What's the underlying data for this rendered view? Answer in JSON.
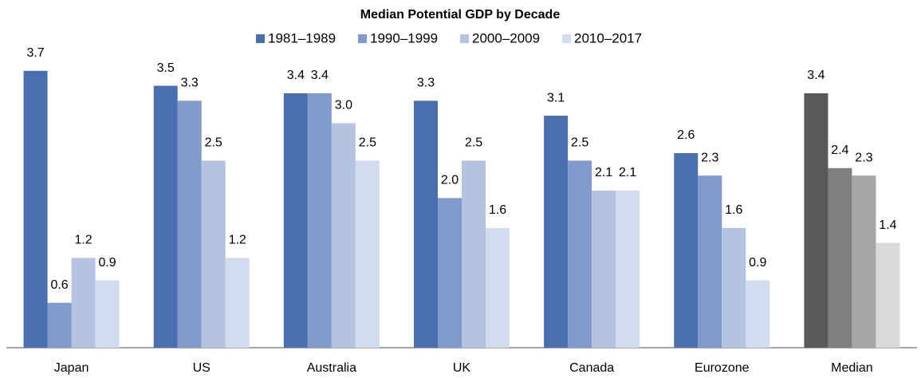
{
  "chart_data": {
    "type": "bar",
    "title": "Median Potential GDP by Decade",
    "categories": [
      "Japan",
      "US",
      "Australia",
      "UK",
      "Canada",
      "Eurozone",
      "Median"
    ],
    "series": [
      {
        "name": "1981–1989",
        "color": "#4a6fb0",
        "colors": [
          "#4a6fb0",
          "#4a6fb0",
          "#4a6fb0",
          "#4a6fb0",
          "#4a6fb0",
          "#4a6fb0",
          "#595959"
        ],
        "values": [
          3.7,
          3.5,
          3.4,
          3.3,
          3.1,
          2.6,
          3.4
        ],
        "value_labels": [
          "3.7",
          "3.5",
          "3.4",
          "3.3",
          "3.1",
          "2.6",
          "3.4"
        ]
      },
      {
        "name": "1990–1999",
        "color": "#809bcb",
        "colors": [
          "#809bcb",
          "#809bcb",
          "#809bcb",
          "#809bcb",
          "#809bcb",
          "#809bcb",
          "#7f7f7f"
        ],
        "values": [
          0.6,
          3.3,
          3.4,
          2.0,
          2.5,
          2.3,
          2.4
        ],
        "value_labels": [
          "0.6",
          "3.3",
          "3.4",
          "2.0",
          "2.5",
          "2.3",
          "2.4"
        ]
      },
      {
        "name": "2000–2009",
        "color": "#b4c4e0",
        "colors": [
          "#b4c4e0",
          "#b4c4e0",
          "#b4c4e0",
          "#b4c4e0",
          "#b4c4e0",
          "#b4c4e0",
          "#a6a6a6"
        ],
        "values": [
          1.2,
          2.5,
          3.0,
          2.5,
          2.1,
          1.6,
          2.3
        ],
        "value_labels": [
          "1.2",
          "2.5",
          "3.0",
          "2.5",
          "2.1",
          "1.6",
          "2.3"
        ]
      },
      {
        "name": "2010–2017",
        "color": "#d2dcee",
        "colors": [
          "#d2dcee",
          "#d2dcee",
          "#d2dcee",
          "#d2dcee",
          "#d2dcee",
          "#d2dcee",
          "#d9d9d9"
        ],
        "values": [
          0.9,
          1.2,
          2.5,
          1.6,
          2.1,
          0.9,
          1.4
        ],
        "value_labels": [
          "0.9",
          "1.2",
          "2.5",
          "1.6",
          "2.1",
          "0.9",
          "1.4"
        ]
      }
    ],
    "ylim": [
      0,
      4.22
    ],
    "legend": "top"
  }
}
